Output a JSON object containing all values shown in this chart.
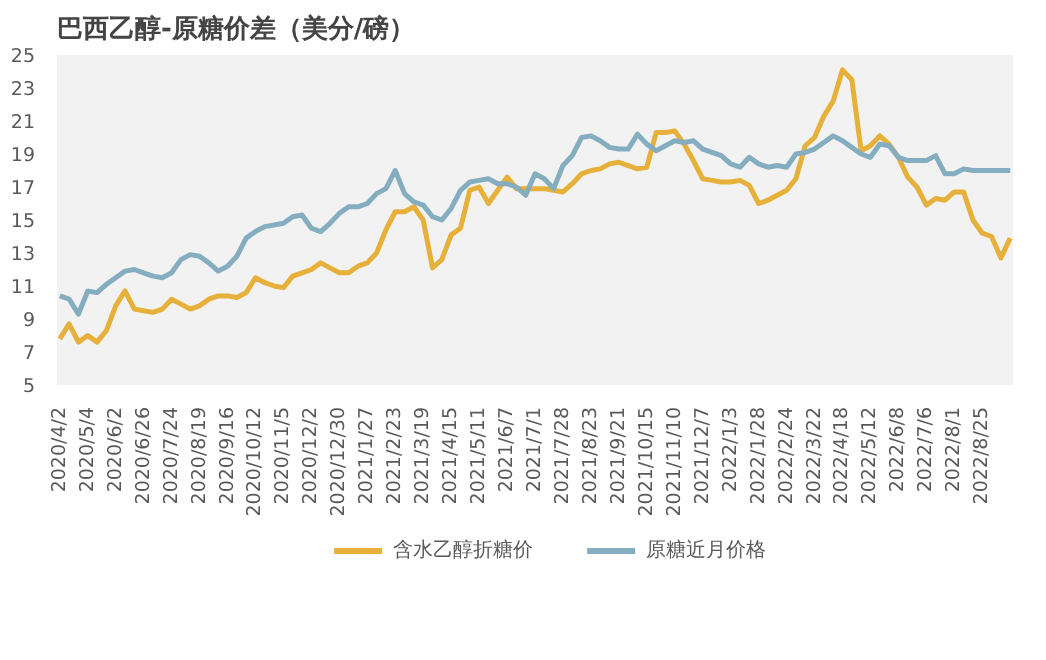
{
  "chart_data": {
    "type": "line",
    "title": "巴西乙醇-原糖价差（美分/磅）",
    "categories": [
      "2020/4/2",
      null,
      null,
      "2020/5/4",
      null,
      null,
      "2020/6/2",
      null,
      null,
      "2020/6/26",
      null,
      null,
      "2020/7/24",
      null,
      null,
      "2020/8/19",
      null,
      null,
      "2020/9/16",
      null,
      null,
      "2020/10/12",
      null,
      null,
      "2020/11/5",
      null,
      null,
      "2020/12/2",
      null,
      null,
      "2020/12/30",
      null,
      null,
      "2021/1/27",
      null,
      null,
      "2021/2/23",
      null,
      null,
      "2021/3/19",
      null,
      null,
      "2021/4/15",
      null,
      null,
      "2021/5/11",
      null,
      null,
      "2021/6/7",
      null,
      null,
      "2021/7/1",
      null,
      null,
      "2021/7/28",
      null,
      null,
      "2021/8/23",
      null,
      null,
      "2021/9/21",
      null,
      null,
      "2021/10/15",
      null,
      null,
      "2021/11/10",
      null,
      null,
      "2021/12/7",
      null,
      null,
      "2022/1/3",
      null,
      null,
      "2022/1/28",
      null,
      null,
      "2022/2/24",
      null,
      null,
      "2022/3/22",
      null,
      null,
      "2022/4/18",
      null,
      null,
      "2022/5/12",
      null,
      null,
      "2022/6/8",
      null,
      null,
      "2022/7/6",
      null,
      null,
      "2022/8/1",
      null,
      null,
      "2022/8/25",
      null,
      null,
      null
    ],
    "series": [
      {
        "name": "含水乙醇折糖价",
        "color": "#e6b03a",
        "values": [
          7.8,
          8.7,
          7.6,
          8.0,
          7.6,
          8.3,
          9.8,
          10.7,
          9.6,
          9.5,
          9.4,
          9.6,
          10.2,
          9.9,
          9.6,
          9.8,
          10.2,
          10.4,
          10.4,
          10.3,
          10.6,
          11.5,
          11.2,
          11.0,
          10.9,
          11.6,
          11.8,
          12.0,
          12.4,
          12.1,
          11.8,
          11.8,
          12.2,
          12.4,
          13.0,
          14.4,
          15.5,
          15.5,
          15.8,
          15.0,
          12.1,
          12.6,
          14.1,
          14.5,
          16.8,
          17.0,
          16.0,
          16.8,
          17.6,
          16.9,
          16.9,
          16.9,
          16.9,
          16.8,
          16.7,
          17.2,
          17.8,
          18.0,
          18.1,
          18.4,
          18.5,
          18.3,
          18.1,
          18.2,
          20.3,
          20.3,
          20.4,
          19.6,
          18.6,
          17.5,
          17.4,
          17.3,
          17.3,
          17.4,
          17.1,
          16.0,
          16.2,
          16.5,
          16.8,
          17.5,
          19.5,
          20.0,
          21.3,
          22.2,
          24.1,
          23.5,
          19.2,
          19.5,
          20.1,
          19.6,
          18.8,
          17.6,
          17.0,
          15.9,
          16.3,
          16.2,
          16.7,
          16.7,
          15.0,
          14.2,
          14.0,
          12.7,
          13.9
        ]
      },
      {
        "name": "原糖近月价格",
        "color": "#84adc0",
        "values": [
          10.4,
          10.2,
          9.3,
          10.7,
          10.6,
          11.1,
          11.5,
          11.9,
          12.0,
          11.8,
          11.6,
          11.5,
          11.8,
          12.6,
          12.9,
          12.8,
          12.4,
          11.9,
          12.2,
          12.8,
          13.9,
          14.3,
          14.6,
          14.7,
          14.8,
          15.2,
          15.3,
          14.5,
          14.3,
          14.8,
          15.4,
          15.8,
          15.8,
          16.0,
          16.6,
          16.9,
          18.0,
          16.6,
          16.1,
          15.9,
          15.2,
          15.0,
          15.7,
          16.8,
          17.3,
          17.4,
          17.5,
          17.2,
          17.2,
          17.0,
          16.5,
          17.8,
          17.5,
          16.9,
          18.3,
          18.9,
          20.0,
          20.1,
          19.8,
          19.4,
          19.3,
          19.3,
          20.2,
          19.6,
          19.2,
          19.5,
          19.8,
          19.7,
          19.8,
          19.3,
          19.1,
          18.9,
          18.4,
          18.2,
          18.8,
          18.4,
          18.2,
          18.3,
          18.2,
          19.0,
          19.1,
          19.3,
          19.7,
          20.1,
          19.8,
          19.4,
          19.0,
          18.8,
          19.6,
          19.5,
          18.8,
          18.6,
          18.6,
          18.6,
          18.9,
          17.8,
          17.8,
          18.1,
          18.0,
          18.0,
          18.0,
          18.0,
          18.0
        ]
      }
    ],
    "ylim": [
      5,
      25
    ],
    "yticks": [
      5,
      7,
      9,
      11,
      13,
      15,
      17,
      19,
      21,
      23,
      25
    ],
    "grid": false,
    "legend": "bottom"
  }
}
